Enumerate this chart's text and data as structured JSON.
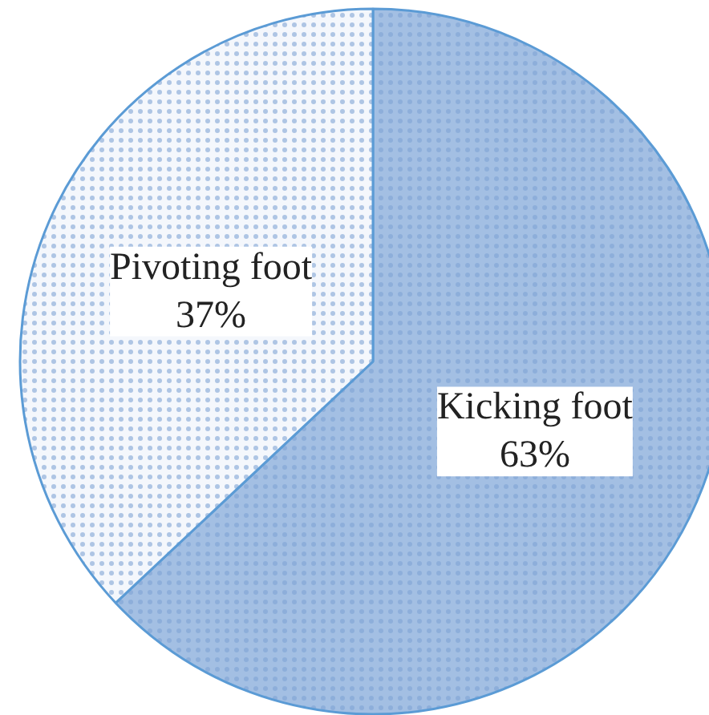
{
  "chart_data": {
    "type": "pie",
    "categories": [
      "Kicking foot",
      "Pivoting foot"
    ],
    "values": [
      63,
      37
    ],
    "value_labels": [
      "63%",
      "37%"
    ],
    "colors": [
      "#a3bfe3",
      "#f4f7fc"
    ]
  }
}
